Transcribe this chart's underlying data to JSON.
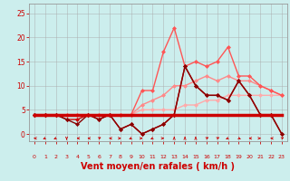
{
  "xlabel": "Vent moyen/en rafales ( km/h )",
  "background_color": "#cceeed",
  "grid_color": "#aaaaaa",
  "xlabel_color": "#cc0000",
  "xlabel_fontsize": 7,
  "yticks": [
    0,
    5,
    10,
    15,
    20,
    25
  ],
  "ylim": [
    -1.5,
    27
  ],
  "xlim": [
    -0.5,
    23.5
  ],
  "series": [
    {
      "x": [
        0,
        1,
        2,
        3,
        4,
        5,
        6,
        7,
        8,
        9,
        10,
        11,
        12,
        13,
        14,
        15,
        16,
        17,
        18,
        19,
        20,
        21,
        22,
        23
      ],
      "y": [
        4,
        4,
        4,
        4,
        4,
        4,
        4,
        4,
        4,
        4,
        4,
        4,
        4,
        4,
        4,
        4,
        4,
        4,
        4,
        4,
        4,
        4,
        4,
        4
      ],
      "color": "#cc0000",
      "linewidth": 2.5,
      "marker": null,
      "zorder": 5
    },
    {
      "x": [
        0,
        1,
        2,
        3,
        4,
        5,
        6,
        7,
        8,
        9,
        10,
        11,
        12,
        13,
        14,
        15,
        16,
        17,
        18,
        19,
        20,
        21,
        22,
        23
      ],
      "y": [
        4,
        4,
        4,
        4,
        4,
        4,
        4,
        4,
        4,
        4,
        5,
        5,
        5,
        5,
        6,
        6,
        7,
        7,
        8,
        8,
        8,
        8,
        8,
        8
      ],
      "color": "#ffaaaa",
      "linewidth": 1.0,
      "marker": "D",
      "markersize": 2,
      "zorder": 3
    },
    {
      "x": [
        0,
        1,
        2,
        3,
        4,
        5,
        6,
        7,
        8,
        9,
        10,
        11,
        12,
        13,
        14,
        15,
        16,
        17,
        18,
        19,
        20,
        21,
        22,
        23
      ],
      "y": [
        4,
        4,
        4,
        4,
        4,
        4,
        4,
        4,
        4,
        4,
        6,
        7,
        8,
        10,
        10,
        11,
        12,
        11,
        12,
        11,
        11,
        10,
        9,
        8
      ],
      "color": "#ff8888",
      "linewidth": 1.0,
      "marker": "D",
      "markersize": 2,
      "zorder": 3
    },
    {
      "x": [
        0,
        1,
        2,
        3,
        4,
        5,
        6,
        7,
        8,
        9,
        10,
        11,
        12,
        13,
        14,
        15,
        16,
        17,
        18,
        19,
        20,
        21,
        22,
        23
      ],
      "y": [
        4,
        4,
        4,
        4,
        4,
        4,
        4,
        4,
        4,
        4,
        9,
        9,
        17,
        22,
        14,
        15,
        14,
        15,
        18,
        12,
        12,
        10,
        9,
        8
      ],
      "color": "#ff5555",
      "linewidth": 1.0,
      "marker": "D",
      "markersize": 2,
      "zorder": 3
    },
    {
      "x": [
        0,
        1,
        2,
        3,
        4,
        5,
        6,
        7,
        8,
        9,
        10,
        11,
        12,
        13,
        14,
        15,
        16,
        17,
        18,
        19,
        20,
        21,
        22,
        23
      ],
      "y": [
        4,
        4,
        4,
        3,
        3,
        4,
        3,
        4,
        1,
        2,
        0,
        1,
        2,
        4,
        14,
        10,
        8,
        8,
        7,
        11,
        8,
        4,
        4,
        0
      ],
      "color": "#cc0000",
      "linewidth": 1.0,
      "marker": "D",
      "markersize": 2,
      "zorder": 4
    },
    {
      "x": [
        0,
        1,
        2,
        3,
        4,
        5,
        6,
        7,
        8,
        9,
        10,
        11,
        12,
        13,
        14,
        15,
        16,
        17,
        18,
        19,
        20,
        21,
        22,
        23
      ],
      "y": [
        4,
        4,
        4,
        3,
        2,
        4,
        3,
        4,
        1,
        2,
        0,
        1,
        2,
        4,
        14,
        10,
        8,
        8,
        7,
        11,
        8,
        4,
        4,
        0
      ],
      "color": "#880000",
      "linewidth": 1.0,
      "marker": "D",
      "markersize": 2,
      "zorder": 4
    }
  ],
  "arrows": {
    "x": [
      0,
      1,
      2,
      3,
      4,
      5,
      6,
      7,
      8,
      9,
      10,
      11,
      12,
      13,
      14,
      15,
      16,
      17,
      18,
      19,
      20,
      21,
      22,
      23
    ],
    "angles_deg": [
      270,
      225,
      225,
      180,
      270,
      270,
      45,
      270,
      90,
      225,
      90,
      225,
      90,
      0,
      0,
      0,
      45,
      45,
      225,
      135,
      270,
      90,
      270,
      45
    ]
  }
}
